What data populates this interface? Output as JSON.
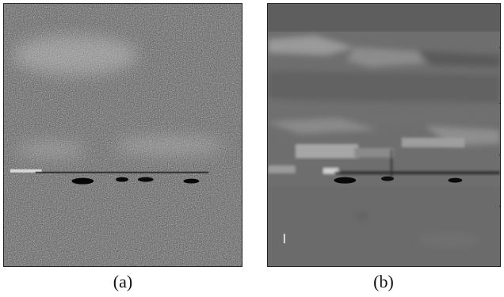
{
  "figure": {
    "panels": [
      {
        "id": "a",
        "label": "(a)"
      },
      {
        "id": "b",
        "label": "(b)"
      }
    ]
  }
}
